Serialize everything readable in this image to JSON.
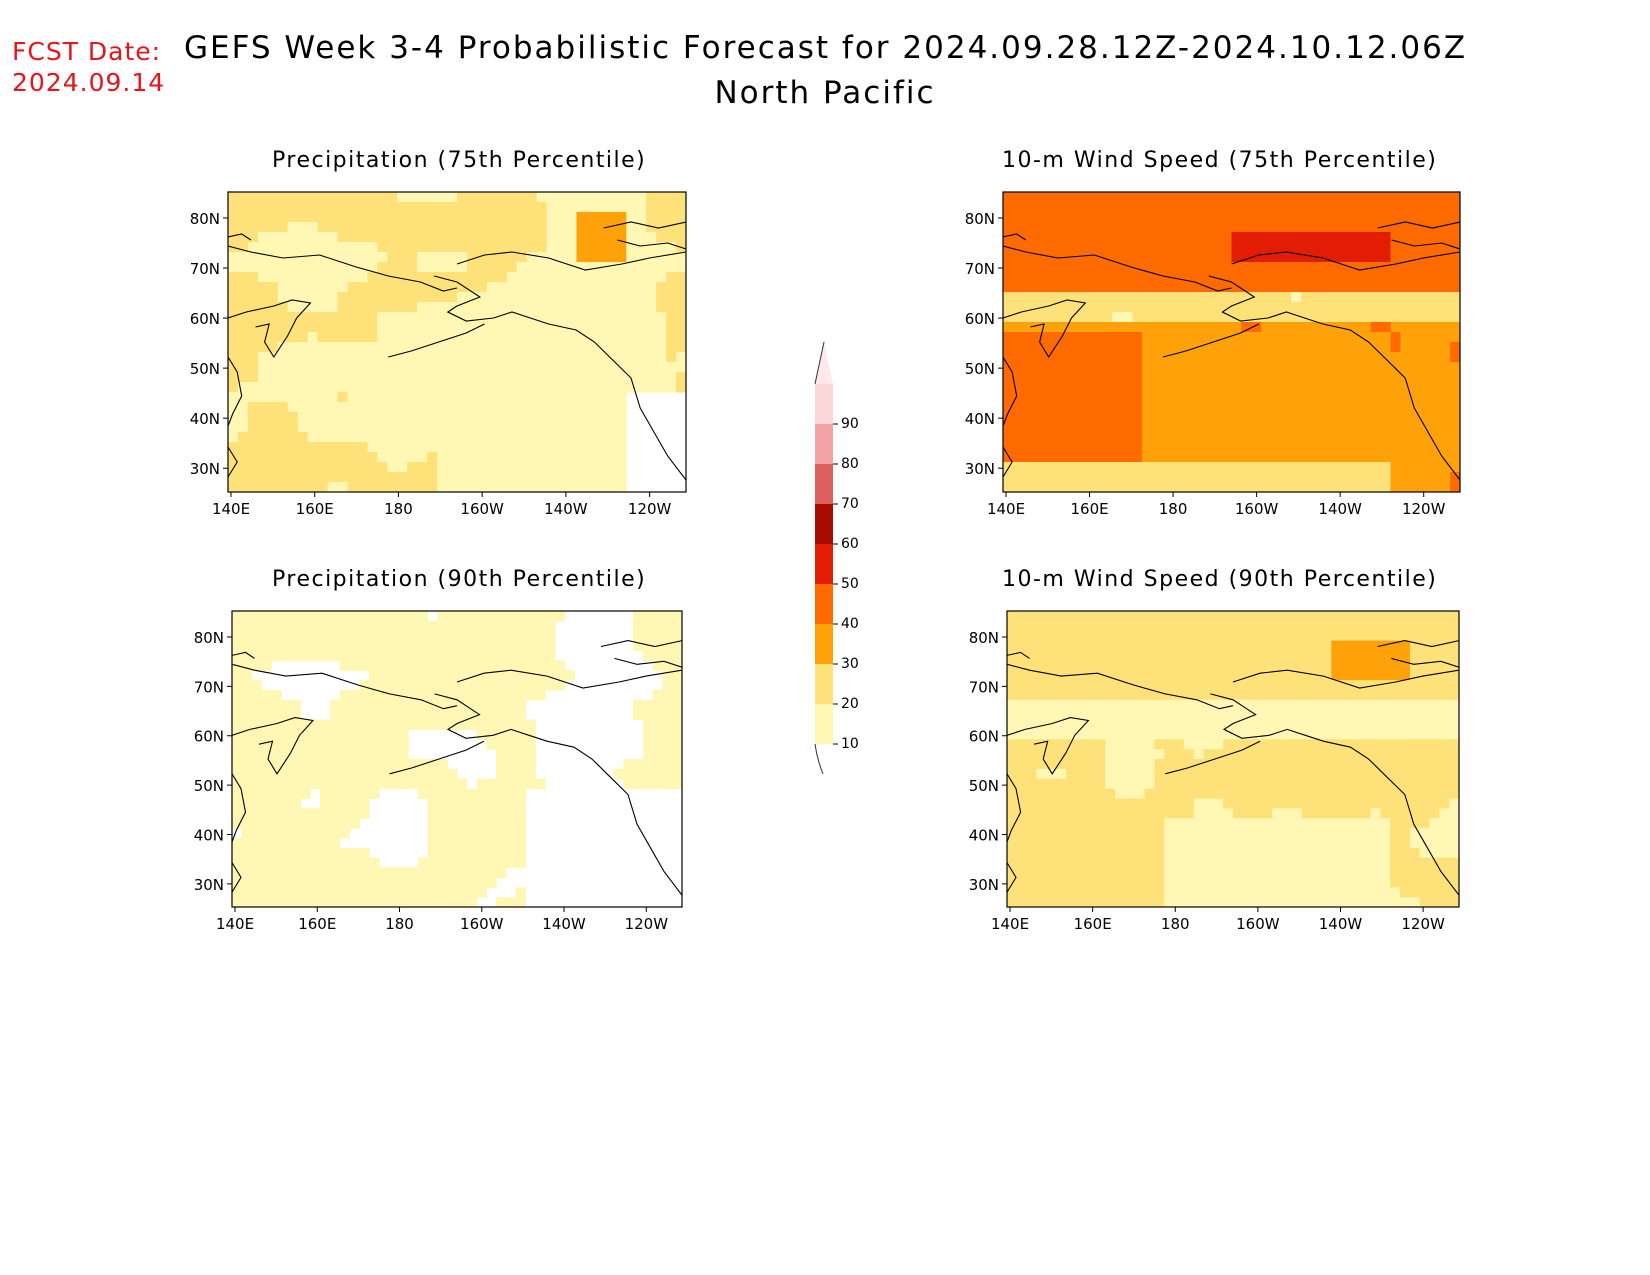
{
  "header": {
    "fcst_label": "FCST Date:",
    "fcst_date": "2024.09.14",
    "title": "GEFS Week 3-4 Probabilistic Forecast for 2024.09.28.12Z-2024.10.12.06Z",
    "subtitle": "North Pacific"
  },
  "axes": {
    "lon_ticks": [
      "140E",
      "160E",
      "180",
      "160W",
      "140W",
      "120W"
    ],
    "lat_ticks": [
      "80N",
      "70N",
      "60N",
      "50N",
      "40N",
      "30N"
    ]
  },
  "panels": [
    {
      "title": "Precipitation (75th Percentile)",
      "field": "precip75"
    },
    {
      "title": "10-m Wind Speed (75th Percentile)",
      "field": "wind75"
    },
    {
      "title": "Precipitation (90th Percentile)",
      "field": "precip90"
    },
    {
      "title": "10-m Wind Speed (90th Percentile)",
      "field": "wind90"
    }
  ],
  "colorbar": {
    "levels": [
      "10",
      "20",
      "30",
      "40",
      "50",
      "60",
      "70",
      "80",
      "90"
    ],
    "colors": [
      "#fff7b3",
      "#ffe17a",
      "#ffa20a",
      "#ff6b00",
      "#e21d04",
      "#a80c00",
      "#dd6060",
      "#f3a3a3",
      "#fbd7da"
    ],
    "top_color": "#ffe8ee"
  }
}
